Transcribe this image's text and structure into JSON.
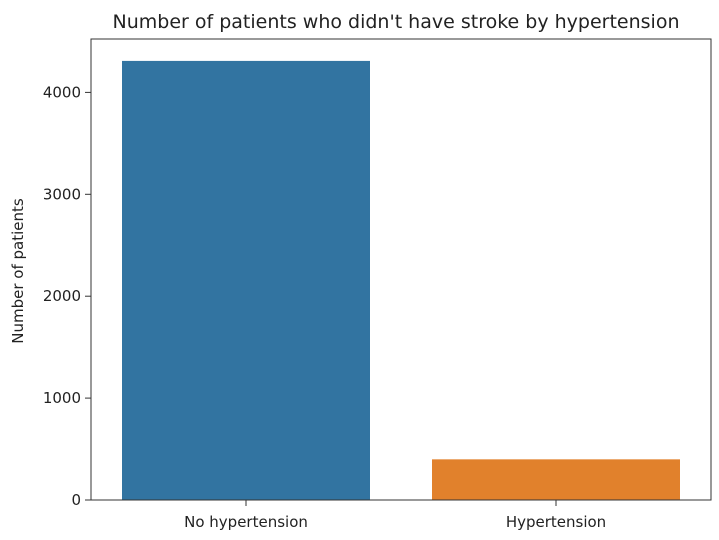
{
  "chart_data": {
    "type": "bar",
    "title": "Number of patients who didn't have stroke by hypertension",
    "xlabel": "",
    "ylabel": "Number of patients",
    "categories": [
      "No hypertension",
      "Hypertension"
    ],
    "values": [
      4309,
      399
    ],
    "colors": [
      "#3274a1",
      "#e1812c"
    ],
    "ylim": [
      0,
      4524
    ],
    "yticks": [
      0,
      1000,
      2000,
      3000,
      4000
    ],
    "grid": false,
    "legend": "none"
  }
}
